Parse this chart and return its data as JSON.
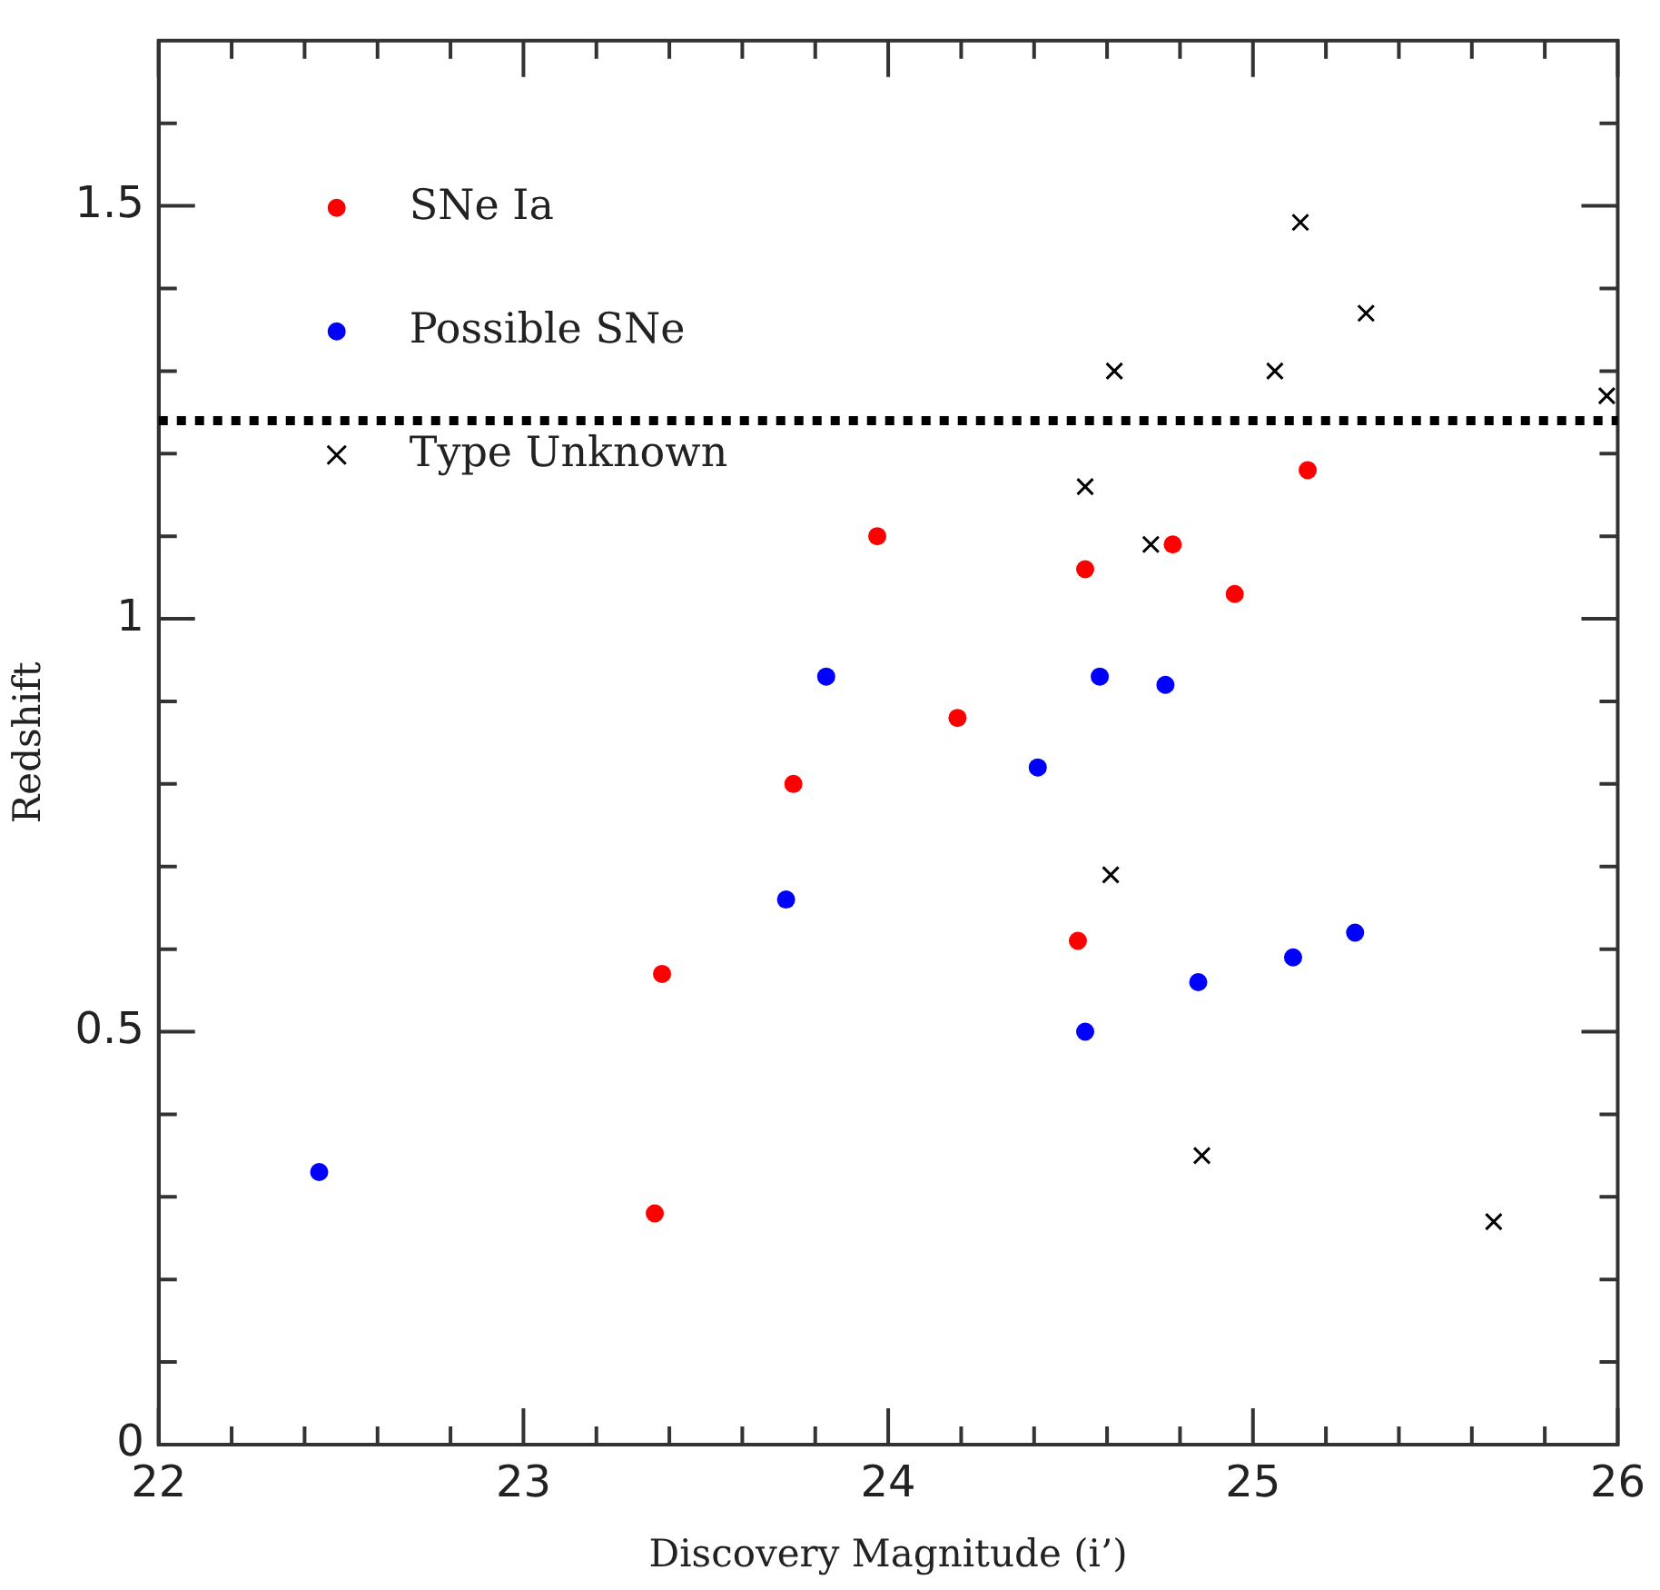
{
  "chart_data": {
    "type": "scatter",
    "xlabel": "Discovery Magnitude (i’)",
    "ylabel": "Redshift",
    "xlim": [
      22,
      26
    ],
    "ylim": [
      0,
      1.7
    ],
    "xticks": [
      22,
      {
        "value": 22.2,
        "label": null
      },
      {
        "value": 22.4,
        "label": null
      },
      {
        "value": 22.6,
        "label": null
      },
      {
        "value": 22.8,
        "label": null
      },
      23,
      {
        "value": 23.2,
        "label": null
      },
      {
        "value": 23.4,
        "label": null
      },
      {
        "value": 23.6,
        "label": null
      },
      {
        "value": 23.8,
        "label": null
      },
      24,
      {
        "value": 24.2,
        "label": null
      },
      {
        "value": 24.4,
        "label": null
      },
      {
        "value": 24.6,
        "label": null
      },
      {
        "value": 24.8,
        "label": null
      },
      25,
      {
        "value": 25.2,
        "label": null
      },
      {
        "value": 25.4,
        "label": null
      },
      {
        "value": 25.6,
        "label": null
      },
      {
        "value": 25.8,
        "label": null
      },
      26
    ],
    "yticks": [
      0,
      {
        "value": 0.1,
        "label": null
      },
      {
        "value": 0.2,
        "label": null
      },
      {
        "value": 0.3,
        "label": null
      },
      {
        "value": 0.4,
        "label": null
      },
      0.5,
      {
        "value": 0.6,
        "label": null
      },
      {
        "value": 0.7,
        "label": null
      },
      {
        "value": 0.8,
        "label": null
      },
      {
        "value": 0.9,
        "label": null
      },
      1,
      {
        "value": 1.1,
        "label": null
      },
      {
        "value": 1.2,
        "label": null
      },
      {
        "value": 1.3,
        "label": null
      },
      {
        "value": 1.4,
        "label": null
      },
      1.5,
      {
        "value": 1.6,
        "label": null
      }
    ],
    "grid": false,
    "legend": "top left",
    "ref_lines": [
      {
        "axis": "y",
        "value": 1.24,
        "label": null,
        "color": "#000000",
        "line_style": "dotted"
      }
    ],
    "series": [
      {
        "name": "SNe Ia",
        "color": "#ff0000",
        "marker": "circle",
        "x": [
          23.97,
          24.54,
          24.78,
          24.95,
          25.15,
          24.19,
          23.74,
          23.38,
          23.36,
          24.52
        ],
        "values": [
          1.1,
          1.06,
          1.09,
          1.03,
          1.18,
          0.88,
          0.8,
          0.57,
          0.28,
          0.61
        ]
      },
      {
        "name": "Possible SNe",
        "color": "#0000ff",
        "marker": "circle",
        "x": [
          23.83,
          24.58,
          24.76,
          24.41,
          23.72,
          24.54,
          24.85,
          25.11,
          25.28,
          22.44
        ],
        "values": [
          0.93,
          0.93,
          0.92,
          0.82,
          0.66,
          0.5,
          0.56,
          0.59,
          0.62,
          0.33
        ]
      },
      {
        "name": "Type Unknown",
        "color": "#000000",
        "marker": "cross",
        "x": [
          25.13,
          25.31,
          24.62,
          25.06,
          25.97,
          24.54,
          24.72,
          24.61,
          24.86,
          25.66
        ],
        "values": [
          1.48,
          1.37,
          1.3,
          1.3,
          1.27,
          1.16,
          1.09,
          0.69,
          0.35,
          0.27
        ]
      }
    ]
  }
}
